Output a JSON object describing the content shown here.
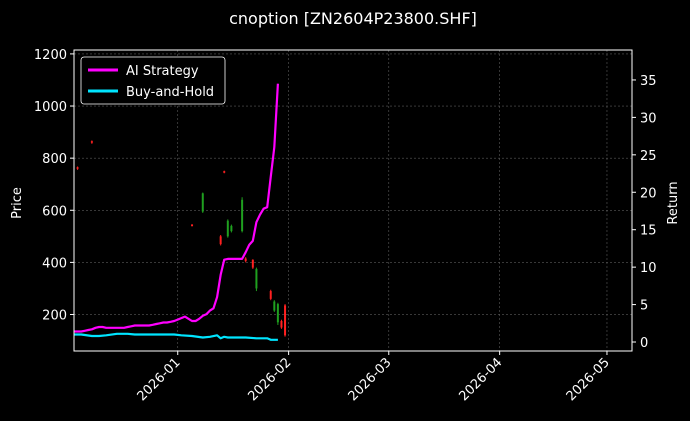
{
  "chart_data": {
    "type": "line",
    "title": "cnoption [ZN2604P23800.SHF]",
    "ylabel_left": "Price",
    "ylabel_right": "Return",
    "xlabel": "",
    "x_ticks": [
      "2026-01",
      "2026-02",
      "2026-03",
      "2026-04",
      "2026-05"
    ],
    "x_range": [
      "2025-12-03",
      "2026-05-08"
    ],
    "y_left_range": [
      60,
      1215
    ],
    "y_left_ticks": [
      200,
      400,
      600,
      800,
      1000,
      1200
    ],
    "y_right_range": [
      -1.2,
      39
    ],
    "y_right_ticks": [
      0,
      5,
      10,
      15,
      20,
      25,
      30,
      35
    ],
    "grid": true,
    "legend_position": "top-left",
    "colors": {
      "background": "#000000",
      "ai_strategy": "#ff00ff",
      "buy_and_hold": "#00e5ff",
      "candle_up": "#1fa01f",
      "candle_down": "#ff2020",
      "axis": "#ffffff",
      "grid": "#5a5a5a"
    },
    "series": [
      {
        "name": "AI Strategy",
        "axis": "right",
        "x": [
          "2025-12-03",
          "2025-12-04",
          "2025-12-05",
          "2025-12-06",
          "2025-12-07",
          "2025-12-08",
          "2025-12-09",
          "2025-12-10",
          "2025-12-11",
          "2025-12-12",
          "2025-12-13",
          "2025-12-14",
          "2025-12-15",
          "2025-12-16",
          "2025-12-17",
          "2025-12-18",
          "2025-12-19",
          "2025-12-20",
          "2025-12-21",
          "2025-12-22",
          "2025-12-23",
          "2025-12-24",
          "2025-12-25",
          "2025-12-26",
          "2025-12-27",
          "2025-12-28",
          "2025-12-29",
          "2025-12-30",
          "2025-12-31",
          "2026-01-01",
          "2026-01-02",
          "2026-01-03",
          "2026-01-04",
          "2026-01-05",
          "2026-01-06",
          "2026-01-07",
          "2026-01-08",
          "2026-01-09",
          "2026-01-10",
          "2026-01-11",
          "2026-01-12",
          "2026-01-13",
          "2026-01-14",
          "2026-01-15",
          "2026-01-16",
          "2026-01-17",
          "2026-01-18",
          "2026-01-19",
          "2026-01-20",
          "2026-01-21",
          "2026-01-22",
          "2026-01-23",
          "2026-01-24",
          "2026-01-25",
          "2026-01-26",
          "2026-01-27",
          "2026-01-28",
          "2026-01-29"
        ],
        "values": [
          1.4,
          1.4,
          1.4,
          1.5,
          1.6,
          1.7,
          1.9,
          2.0,
          2.0,
          1.9,
          1.9,
          1.9,
          1.9,
          1.9,
          1.9,
          2.0,
          2.1,
          2.2,
          2.2,
          2.2,
          2.2,
          2.2,
          2.3,
          2.4,
          2.5,
          2.6,
          2.6,
          2.7,
          2.8,
          3.0,
          3.2,
          3.4,
          3.1,
          2.8,
          2.8,
          3.1,
          3.5,
          3.7,
          4.2,
          4.5,
          6.0,
          9.0,
          11.0,
          11.1,
          11.1,
          11.1,
          11.1,
          11.1,
          12.0,
          13.0,
          13.5,
          16.0,
          17.0,
          17.8,
          18.0,
          22.0,
          26.0,
          34.5
        ]
      },
      {
        "name": "Buy-and-Hold",
        "axis": "right",
        "x": [
          "2025-12-03",
          "2025-12-05",
          "2025-12-08",
          "2025-12-10",
          "2025-12-12",
          "2025-12-15",
          "2025-12-18",
          "2025-12-20",
          "2025-12-22",
          "2025-12-24",
          "2025-12-26",
          "2025-12-29",
          "2025-12-31",
          "2026-01-02",
          "2026-01-05",
          "2026-01-08",
          "2026-01-10",
          "2026-01-12",
          "2026-01-13",
          "2026-01-14",
          "2026-01-15",
          "2026-01-17",
          "2026-01-20",
          "2026-01-23",
          "2026-01-26",
          "2026-01-27",
          "2026-01-29"
        ],
        "values": [
          1.0,
          1.0,
          0.8,
          0.8,
          0.9,
          1.1,
          1.1,
          1.0,
          1.0,
          1.0,
          1.0,
          1.0,
          1.0,
          0.9,
          0.8,
          0.6,
          0.7,
          0.9,
          0.5,
          0.7,
          0.6,
          0.6,
          0.6,
          0.5,
          0.5,
          0.3,
          0.3
        ]
      }
    ],
    "candles": [
      {
        "x": "2025-12-04",
        "open": 765,
        "close": 760,
        "high": 768,
        "low": 755
      },
      {
        "x": "2025-12-08",
        "open": 865,
        "close": 860,
        "high": 868,
        "low": 855
      },
      {
        "x": "2026-01-05",
        "open": 545,
        "close": 540,
        "high": 547,
        "low": 538
      },
      {
        "x": "2026-01-08",
        "open": 595,
        "close": 665,
        "high": 668,
        "low": 590
      },
      {
        "x": "2026-01-13",
        "open": 500,
        "close": 470,
        "high": 505,
        "low": 465
      },
      {
        "x": "2026-01-14",
        "open": 750,
        "close": 745,
        "high": 752,
        "low": 742
      },
      {
        "x": "2026-01-15",
        "open": 500,
        "close": 560,
        "high": 565,
        "low": 495
      },
      {
        "x": "2026-01-16",
        "open": 520,
        "close": 540,
        "high": 545,
        "low": 515
      },
      {
        "x": "2026-01-19",
        "open": 520,
        "close": 640,
        "high": 650,
        "low": 515
      },
      {
        "x": "2026-01-20",
        "open": 415,
        "close": 405,
        "high": 420,
        "low": 400
      },
      {
        "x": "2026-01-22",
        "open": 410,
        "close": 380,
        "high": 412,
        "low": 375
      },
      {
        "x": "2026-01-23",
        "open": 300,
        "close": 375,
        "high": 380,
        "low": 290
      },
      {
        "x": "2026-01-27",
        "open": 290,
        "close": 260,
        "high": 295,
        "low": 255
      },
      {
        "x": "2026-01-28",
        "open": 215,
        "close": 250,
        "high": 255,
        "low": 210
      },
      {
        "x": "2026-01-29",
        "open": 170,
        "close": 240,
        "high": 245,
        "low": 160
      },
      {
        "x": "2026-01-30",
        "open": 175,
        "close": 150,
        "high": 180,
        "low": 145
      },
      {
        "x": "2026-01-31",
        "open": 235,
        "close": 120,
        "high": 240,
        "low": 115
      }
    ]
  }
}
